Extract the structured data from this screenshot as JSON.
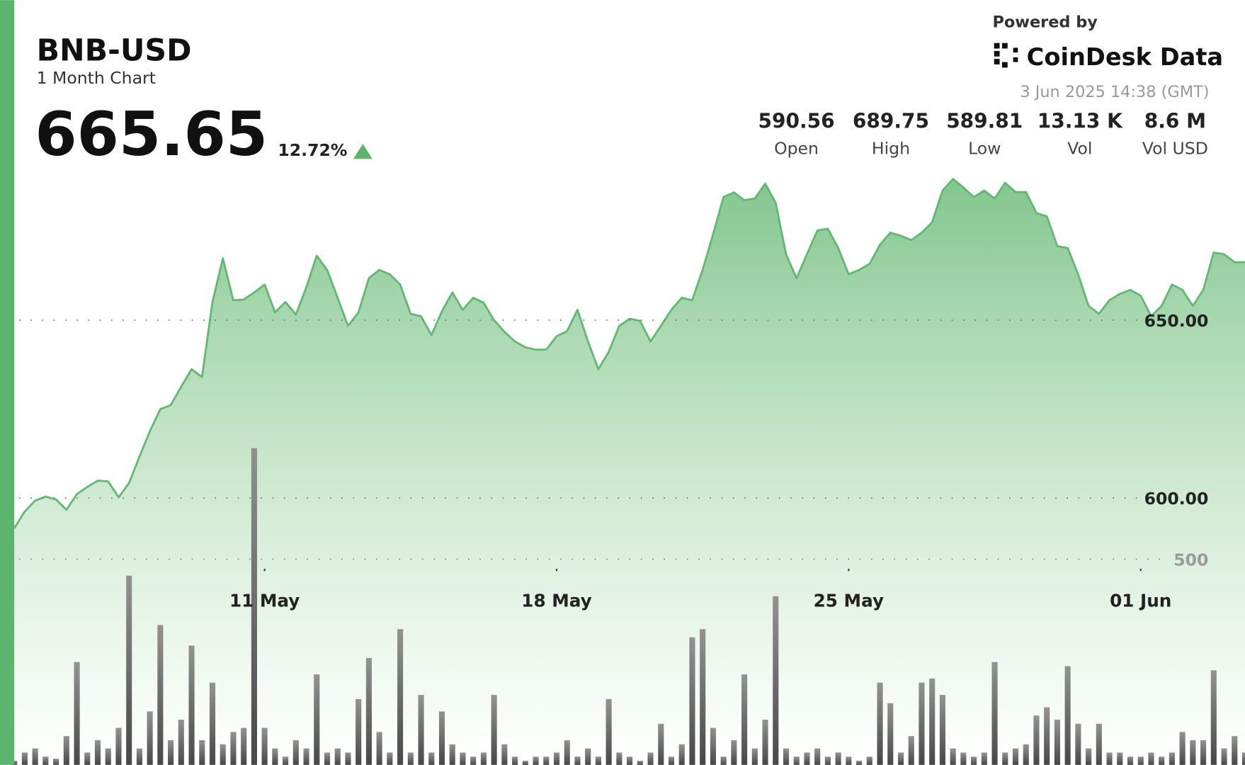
{
  "header": {
    "title": "BNB-USD",
    "subtitle": "1 Month Chart",
    "price": "665.65",
    "change": "12.72%",
    "powered_by": "Powered by",
    "brand": "CoinDesk Data",
    "timestamp": "3 Jun 2025 14:38 (GMT)"
  },
  "stats": [
    {
      "value": "590.56",
      "label": "Open"
    },
    {
      "value": "689.75",
      "label": "High"
    },
    {
      "value": "589.81",
      "label": "Low"
    },
    {
      "value": "13.13 K",
      "label": "Vol"
    },
    {
      "value": "8.6 M",
      "label": "Vol USD"
    }
  ],
  "chart_data": {
    "type": "line",
    "xlim": [
      0,
      118
    ],
    "xticks": [
      {
        "value": 24,
        "label": "11 May"
      },
      {
        "value": 52,
        "label": "18 May"
      },
      {
        "value": 80,
        "label": "25 May"
      },
      {
        "value": 108,
        "label": "01 Jun"
      }
    ],
    "ylim": [
      580,
      720
    ],
    "yticks": [
      {
        "value": 600,
        "label": "600.00"
      },
      {
        "value": 650,
        "label": "650.00"
      }
    ],
    "y2lim": [
      0,
      1000
    ],
    "y2ticks": [
      500
    ],
    "grid": true,
    "series": [
      {
        "type": "area",
        "color": "#62b872",
        "values": [
          591.5,
          596.2,
          599.3,
          600.4,
          599.6,
          596.7,
          601.1,
          603.1,
          604.9,
          604.7,
          600.2,
          604.2,
          611.6,
          618.8,
          625,
          626.1,
          631.3,
          636.2,
          634,
          655.1,
          667.4,
          655.6,
          655.8,
          657.8,
          660,
          652.2,
          655.1,
          651.6,
          659.2,
          668.1,
          664.1,
          656.3,
          648.4,
          652.2,
          661.8,
          664.1,
          662.9,
          660,
          651.8,
          651.1,
          645.8,
          652.5,
          657.8,
          652.9,
          656.3,
          654.9,
          650,
          646.7,
          644,
          642.4,
          641.7,
          641.7,
          645.5,
          646.9,
          652.9,
          644,
          636.2,
          641.1,
          648.4,
          650.4,
          649.8,
          644,
          648.4,
          652.9,
          656.3,
          655.6,
          664.1,
          674.1,
          684.6,
          685.9,
          683.7,
          684.2,
          688.4,
          683,
          668.5,
          661.8,
          668.5,
          675.2,
          675.7,
          670.3,
          662.9,
          664.1,
          665.8,
          671.2,
          674.6,
          673.7,
          672.5,
          674.6,
          677.5,
          686.4,
          689.7,
          687.3,
          684.6,
          686.4,
          684.2,
          688.6,
          686,
          686,
          680.1,
          679.2,
          670.8,
          670.3,
          662.9,
          654,
          651.8,
          655.6,
          657.4,
          658.5,
          656.9,
          651.1,
          654,
          660,
          658.5,
          654,
          658.5,
          669,
          668.5,
          666.3,
          666.3
        ]
      },
      {
        "type": "bar",
        "axis": "y2",
        "color": "#555555",
        "values": [
          10,
          30,
          40,
          20,
          15,
          70,
          250,
          30,
          60,
          40,
          90,
          460,
          40,
          130,
          340,
          60,
          110,
          290,
          60,
          200,
          50,
          80,
          90,
          770,
          90,
          40,
          20,
          60,
          40,
          220,
          30,
          40,
          30,
          160,
          260,
          80,
          30,
          330,
          30,
          170,
          30,
          130,
          50,
          30,
          20,
          30,
          170,
          50,
          20,
          10,
          20,
          20,
          30,
          60,
          20,
          40,
          20,
          160,
          30,
          20,
          10,
          30,
          100,
          20,
          50,
          310,
          330,
          90,
          20,
          60,
          220,
          40,
          110,
          410,
          40,
          20,
          30,
          40,
          20,
          30,
          20,
          10,
          20,
          200,
          150,
          30,
          70,
          200,
          210,
          170,
          40,
          30,
          20,
          30,
          250,
          30,
          40,
          50,
          120,
          140,
          110,
          240,
          100,
          40,
          100,
          30,
          30,
          20,
          20,
          30,
          20,
          30,
          80,
          60,
          60,
          230,
          40,
          70,
          30
        ]
      }
    ]
  }
}
